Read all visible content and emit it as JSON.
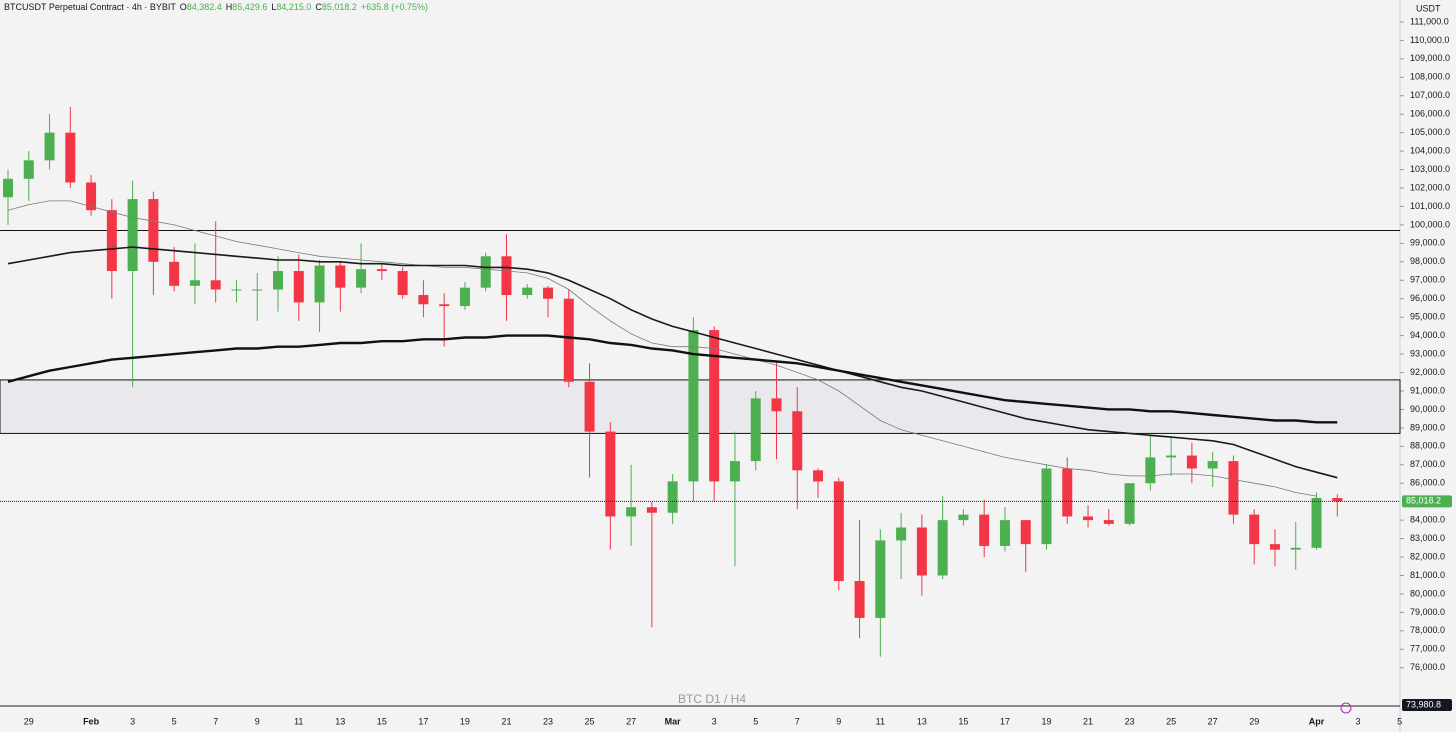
{
  "chart_data": {
    "type": "candlestick",
    "symbol": "BTCUSDT Perpetual Contract · 4h · BYBIT",
    "ohlc_legend": [
      {
        "key": "O",
        "value": "84,382.4"
      },
      {
        "key": "H",
        "value": "85,429.6"
      },
      {
        "key": "L",
        "value": "84,215.0"
      },
      {
        "key": "C",
        "value": "85,018.2"
      }
    ],
    "change": "+635.8 (+0.75%)",
    "axis_unit": "USDT",
    "watermark": "BTC D1 / H4",
    "categories": [
      null,
      "29",
      null,
      null,
      "Feb",
      null,
      "3",
      null,
      "5",
      null,
      "7",
      null,
      "9",
      null,
      "11",
      null,
      "13",
      null,
      "15",
      null,
      "17",
      null,
      "19",
      null,
      "21",
      null,
      "23",
      null,
      "25",
      null,
      "27",
      null,
      "Mar",
      null,
      "3",
      null,
      "5",
      null,
      "7",
      null,
      "9",
      null,
      "11",
      null,
      "13",
      null,
      "15",
      null,
      "17",
      null,
      "19",
      null,
      "21",
      null,
      "23",
      null,
      "25",
      null,
      "27",
      null,
      "29",
      null,
      null,
      "Apr",
      null,
      "3",
      null,
      "5"
    ],
    "candles": {
      "up_color": "#4caf50",
      "down_color": "#f23645",
      "open": [
        101500,
        102500,
        103500,
        105000,
        102300,
        100800,
        97500,
        101400,
        98000,
        96700,
        97000,
        96500,
        96500,
        96500,
        97500,
        95800,
        97800,
        96600,
        97600,
        97500,
        96200,
        95700,
        95600,
        96600,
        98300,
        96200,
        96600,
        96000,
        91500,
        88800,
        84200,
        84700,
        84400,
        86100,
        94300,
        86100,
        87200,
        90600,
        89900,
        86700,
        86100,
        80700,
        78700,
        82900,
        83600,
        81000,
        84000,
        84300,
        82600,
        84000,
        82700,
        86800,
        84200,
        84000,
        83800,
        86000,
        87400,
        87500,
        86800,
        87200,
        84300,
        82700,
        82400,
        82500,
        85200,
        null,
        null,
        null
      ],
      "high": [
        103000,
        104000,
        106000,
        106400,
        102700,
        101400,
        102400,
        101800,
        98800,
        99000,
        100200,
        97000,
        97400,
        98300,
        98400,
        98100,
        98000,
        99000,
        97900,
        97700,
        97000,
        96300,
        96900,
        98500,
        99500,
        96800,
        96700,
        96500,
        92500,
        89300,
        87000,
        85000,
        86500,
        95000,
        94500,
        88800,
        91000,
        92600,
        91200,
        86800,
        86300,
        84000,
        83500,
        84400,
        84300,
        85300,
        84600,
        85100,
        84700,
        84000,
        87000,
        87400,
        84800,
        84600,
        86000,
        88700,
        88500,
        88200,
        87700,
        87500,
        84600,
        83500,
        83900,
        85500,
        85400,
        null,
        null,
        null
      ],
      "low": [
        100000,
        101300,
        103000,
        102000,
        100500,
        96000,
        91200,
        96200,
        96400,
        95700,
        95800,
        95800,
        94800,
        95300,
        94800,
        94200,
        95300,
        96300,
        97000,
        96000,
        95000,
        93400,
        95400,
        96400,
        94800,
        96000,
        95000,
        91200,
        86300,
        82400,
        82600,
        78200,
        83800,
        85000,
        85000,
        81500,
        86700,
        87300,
        84600,
        85200,
        80200,
        77600,
        76600,
        80800,
        79900,
        80800,
        83700,
        82000,
        82300,
        81200,
        82400,
        83800,
        83600,
        83700,
        83700,
        85600,
        86400,
        86000,
        85800,
        83800,
        81600,
        81500,
        81300,
        82400,
        84200,
        null,
        null,
        null
      ],
      "close": [
        102500,
        103500,
        105000,
        102300,
        100800,
        97500,
        101400,
        98000,
        96700,
        97000,
        96500,
        96500,
        96500,
        97500,
        95800,
        97800,
        96600,
        97600,
        97500,
        96200,
        95700,
        95600,
        96600,
        98300,
        96200,
        96600,
        96000,
        91500,
        88800,
        84200,
        84700,
        84400,
        86100,
        94300,
        86100,
        87200,
        90600,
        89900,
        86700,
        86100,
        80700,
        78700,
        82900,
        83600,
        81000,
        84000,
        84300,
        82600,
        84000,
        82700,
        86800,
        84200,
        84000,
        83800,
        86000,
        87400,
        87500,
        86800,
        87200,
        84300,
        82700,
        82400,
        82500,
        85200,
        85018.2,
        null,
        null,
        null
      ]
    },
    "lines": [
      {
        "color": "#7a7a7a",
        "width": 0.8,
        "values": [
          100800,
          101100,
          101300,
          101300,
          101000,
          100700,
          100400,
          100200,
          100000,
          99700,
          99400,
          99100,
          98900,
          98700,
          98500,
          98300,
          98200,
          98100,
          98000,
          97900,
          97800,
          97700,
          97700,
          97600,
          97500,
          97400,
          97100,
          96500,
          95600,
          94800,
          94100,
          93600,
          93400,
          93400,
          93300,
          93000,
          92700,
          92400,
          92000,
          91600,
          91000,
          90200,
          89400,
          88900,
          88600,
          88300,
          88000,
          87700,
          87400,
          87200,
          87000,
          86800,
          86700,
          86500,
          86400,
          86400,
          86500,
          86500,
          86400,
          86200,
          86000,
          85800,
          85500,
          85300,
          null,
          null,
          null,
          null
        ]
      },
      {
        "color": "#1a1a1a",
        "width": 1.6,
        "values": [
          97900,
          98100,
          98300,
          98500,
          98600,
          98700,
          98800,
          98700,
          98600,
          98500,
          98400,
          98300,
          98200,
          98100,
          98100,
          98000,
          98000,
          97900,
          97900,
          97800,
          97800,
          97800,
          97800,
          97700,
          97700,
          97600,
          97400,
          97000,
          96500,
          96000,
          95400,
          94900,
          94500,
          94200,
          93900,
          93600,
          93300,
          93000,
          92700,
          92400,
          92100,
          91800,
          91500,
          91200,
          91000,
          90700,
          90400,
          90100,
          89800,
          89500,
          89300,
          89100,
          88900,
          88800,
          88700,
          88600,
          88500,
          88400,
          88300,
          88100,
          87700,
          87300,
          86900,
          86600,
          86300,
          null,
          null,
          null
        ]
      },
      {
        "color": "#111111",
        "width": 2.4,
        "values": [
          91500,
          91800,
          92100,
          92300,
          92500,
          92700,
          92800,
          92900,
          93000,
          93100,
          93200,
          93300,
          93300,
          93400,
          93400,
          93500,
          93600,
          93600,
          93700,
          93700,
          93800,
          93800,
          93900,
          93900,
          94000,
          94000,
          94000,
          93900,
          93800,
          93600,
          93500,
          93300,
          93200,
          93000,
          92900,
          92800,
          92700,
          92600,
          92500,
          92300,
          92100,
          91900,
          91700,
          91500,
          91300,
          91100,
          90900,
          90700,
          90500,
          90400,
          90300,
          90200,
          90100,
          90000,
          90000,
          89900,
          89900,
          89800,
          89700,
          89600,
          89500,
          89400,
          89400,
          89300,
          89300,
          null,
          null,
          null
        ]
      }
    ],
    "level": 99700,
    "zone": {
      "low": 88700,
      "high": 91600,
      "color": "#e9e9ed"
    },
    "last_price": {
      "value": 85018.2,
      "label": "85,018.2"
    },
    "bottom_marker": {
      "value": 73980.8,
      "label": "73,980.8"
    },
    "ylim": [
      73980.8,
      112190
    ],
    "yticks": [
      {
        "value": 76000,
        "label": "76,000.0"
      },
      {
        "value": 77000,
        "label": "77,000.0"
      },
      {
        "value": 78000,
        "label": "78,000.0"
      },
      {
        "value": 79000,
        "label": "79,000.0"
      },
      {
        "value": 80000,
        "label": "80,000.0"
      },
      {
        "value": 81000,
        "label": "81,000.0"
      },
      {
        "value": 82000,
        "label": "82,000.0"
      },
      {
        "value": 83000,
        "label": "83,000.0"
      },
      {
        "value": 84000,
        "label": "84,000.0"
      },
      {
        "value": 86000,
        "label": "86,000.0"
      },
      {
        "value": 87000,
        "label": "87,000.0"
      },
      {
        "value": 88000,
        "label": "88,000.0"
      },
      {
        "value": 89000,
        "label": "89,000.0"
      },
      {
        "value": 90000,
        "label": "90,000.0"
      },
      {
        "value": 91000,
        "label": "91,000.0"
      },
      {
        "value": 92000,
        "label": "92,000.0"
      },
      {
        "value": 93000,
        "label": "93,000.0"
      },
      {
        "value": 94000,
        "label": "94,000.0"
      },
      {
        "value": 95000,
        "label": "95,000.0"
      },
      {
        "value": 96000,
        "label": "96,000.0"
      },
      {
        "value": 97000,
        "label": "97,000.0"
      },
      {
        "value": 98000,
        "label": "98,000.0"
      },
      {
        "value": 99000,
        "label": "99,000.0"
      },
      {
        "value": 100000,
        "label": "100,000.0"
      },
      {
        "value": 101000,
        "label": "101,000.0"
      },
      {
        "value": 102000,
        "label": "102,000.0"
      },
      {
        "value": 103000,
        "label": "103,000.0"
      },
      {
        "value": 104000,
        "label": "104,000.0"
      },
      {
        "value": 105000,
        "label": "105,000.0"
      },
      {
        "value": 106000,
        "label": "106,000.0"
      },
      {
        "value": 107000,
        "label": "107,000.0"
      },
      {
        "value": 108000,
        "label": "108,000.0"
      },
      {
        "value": 109000,
        "label": "109,000.0"
      },
      {
        "value": 110000,
        "label": "110,000.0"
      },
      {
        "value": 111000,
        "label": "111,000.0"
      }
    ]
  }
}
